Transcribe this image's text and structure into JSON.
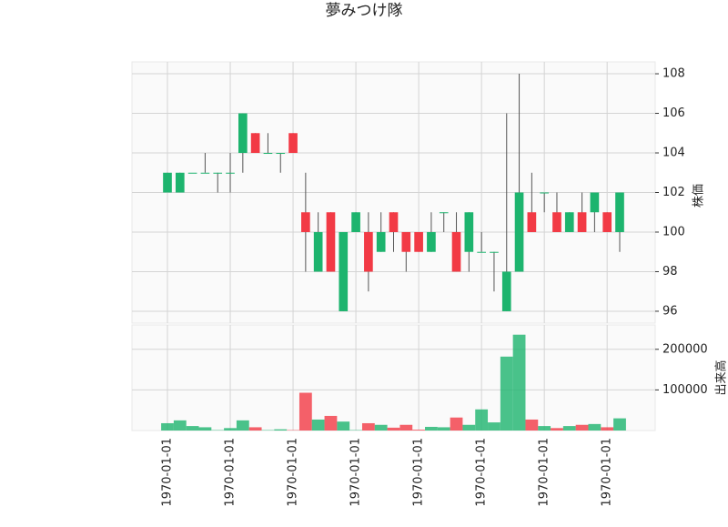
{
  "chart_data": {
    "type": "candlestick",
    "title": "夢みつけ隊",
    "categories": [
      "1970-01-01",
      null,
      null,
      null,
      null,
      "1970-01-01",
      null,
      null,
      null,
      null,
      "1970-01-01",
      null,
      null,
      null,
      null,
      "1970-01-01",
      null,
      null,
      null,
      null,
      "1970-01-01",
      null,
      null,
      null,
      null,
      "1970-01-01",
      null,
      null,
      null,
      null,
      "1970-01-01",
      null,
      null,
      null,
      null,
      "1970-01-01",
      null
    ],
    "open": [
      102,
      102,
      103,
      103,
      103,
      103,
      104,
      105,
      104,
      104,
      105,
      101,
      98,
      101,
      96,
      100,
      100,
      99,
      101,
      100,
      100,
      99,
      101,
      100,
      99,
      99,
      99,
      96,
      98,
      101,
      102,
      101,
      100,
      101,
      101,
      101,
      100
    ],
    "high": [
      103,
      103,
      103,
      104,
      103,
      104,
      106,
      105,
      105,
      104,
      105,
      103,
      101,
      101,
      100,
      101,
      101,
      101,
      101,
      100,
      100,
      101,
      101,
      101,
      101,
      100,
      99,
      106,
      108,
      103,
      102,
      102,
      101,
      102,
      102,
      101,
      102
    ],
    "low": [
      102,
      102,
      103,
      103,
      102,
      102,
      103,
      104,
      104,
      103,
      104,
      98,
      98,
      98,
      96,
      100,
      97,
      99,
      99,
      98,
      99,
      99,
      100,
      98,
      98,
      99,
      97,
      96,
      98,
      100,
      101,
      100,
      100,
      100,
      100,
      100,
      99
    ],
    "close": [
      103,
      103,
      103,
      103,
      103,
      103,
      106,
      104,
      104,
      104,
      104,
      100,
      100,
      98,
      100,
      101,
      98,
      100,
      100,
      99,
      99,
      100,
      101,
      98,
      101,
      99,
      99,
      98,
      102,
      100,
      102,
      100,
      101,
      100,
      102,
      100,
      102
    ],
    "volume": [
      18000,
      25000,
      11000,
      8000,
      1000,
      6000,
      25000,
      8000,
      1000,
      3000,
      1000,
      93000,
      27000,
      36000,
      22000,
      1000,
      18000,
      14000,
      7000,
      14000,
      2000,
      9000,
      8000,
      32000,
      14000,
      52000,
      20000,
      182000,
      236000,
      27000,
      11000,
      6000,
      11000,
      14000,
      16000,
      8000,
      30000
    ],
    "up_color": "#1db46e",
    "down_color": "#f23a45",
    "ylabel": "株価",
    "ylim": [
      95.4,
      108.6
    ],
    "yticks": [
      96,
      98,
      100,
      102,
      104,
      106,
      108
    ],
    "y2label": "出来高",
    "y2lim": [
      0,
      260000
    ],
    "y2ticks": [
      100000,
      200000
    ],
    "grid": true
  }
}
